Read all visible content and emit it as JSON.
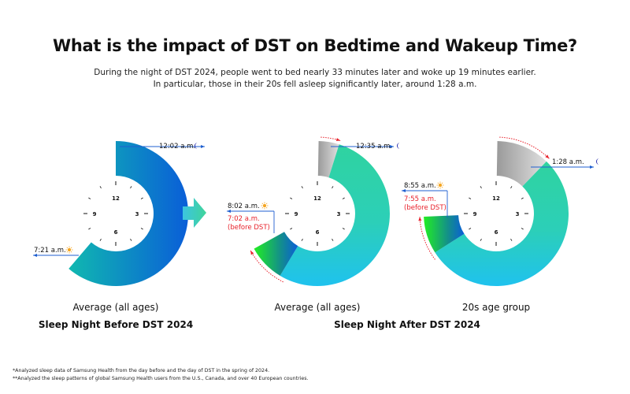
{
  "title": "What is the impact of DST on Bedtime and Wakeup Time?",
  "subtitle": [
    "During the night of DST 2024, people went to bed nearly 33 minutes later and woke up 19 minutes earlier.",
    "In particular, those in their 20s fell asleep significantly later, around 1:28 a.m."
  ],
  "dial_numbers": [
    "12",
    "3",
    "6",
    "9"
  ],
  "clocks": [
    {
      "caption": "Average (all ages)",
      "bedtime": "12:02 a.m.",
      "wakeup": "7:21 a.m.",
      "bed_hours": 0.033,
      "wake_hours": 7.35
    },
    {
      "caption": "Average (all ages)",
      "bedtime": "12:35 a.m.",
      "wakeup": "8:02 a.m.",
      "wakeup_before": "7:02 a.m.",
      "before_note": "(before DST)",
      "bed_before_hours": 0.033,
      "bed_hours": 0.583,
      "wake_before_hours": 7.033,
      "wake_hours": 8.033
    },
    {
      "caption": "20s age group",
      "bedtime": "1:28 a.m.",
      "wakeup": "8:55 a.m.",
      "wakeup_before": "7:55 a.m.",
      "before_note": "(before DST)",
      "bed_before_hours": 0.033,
      "bed_hours": 1.467,
      "wake_before_hours": 7.917,
      "wake_hours": 8.917
    }
  ],
  "group_labels": {
    "before": "Sleep Night Before DST 2024",
    "after": "Sleep Night After DST 2024"
  },
  "footnotes": [
    "*Analyzed sleep data of Samsung Health from the day before and the day of DST in the spring of 2024.",
    "**Analyzed the sleep patterns of global Samsung Health users from the U.S., Canada, and over 40 European countries."
  ],
  "colors": {
    "red": "#e8202a",
    "blue_arrow": "#1f5fd0",
    "moon": "#2a2fb0",
    "sun": "#f5a623"
  }
}
